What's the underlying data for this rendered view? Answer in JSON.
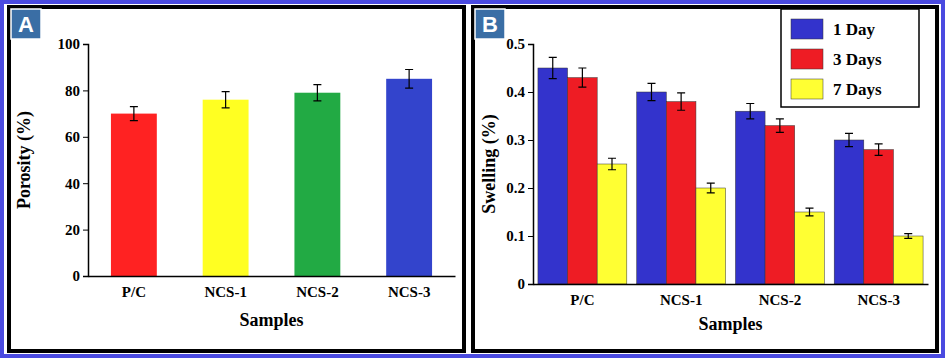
{
  "chart_data": [
    {
      "type": "bar",
      "annotations": [
        "A"
      ],
      "x_label": "Samples",
      "y_label": "Porosity (%)",
      "categories": [
        "P/C",
        "NCS-1",
        "NCS-2",
        "NCS-3"
      ],
      "values": [
        70,
        76,
        79,
        85
      ],
      "errors": [
        3,
        3.5,
        3.5,
        4
      ],
      "colors": [
        "#ff2222",
        "#ffff22",
        "#22aa44",
        "#3344cc"
      ],
      "ylim": [
        0,
        100
      ],
      "yticks": [
        0,
        20,
        40,
        60,
        80,
        100
      ]
    },
    {
      "type": "bar",
      "annotations": [
        "B"
      ],
      "x_label": "Samples",
      "y_label": "Swelling (%)",
      "categories": [
        "P/C",
        "NCS-1",
        "NCS-2",
        "NCS-3"
      ],
      "series": [
        {
          "name": "1 Day",
          "color": "#3333cc",
          "values": [
            0.45,
            0.4,
            0.36,
            0.3
          ],
          "errors": [
            0.022,
            0.018,
            0.016,
            0.014
          ]
        },
        {
          "name": "3 Days",
          "color": "#ee1c24",
          "values": [
            0.43,
            0.38,
            0.33,
            0.28
          ],
          "errors": [
            0.02,
            0.018,
            0.014,
            0.012
          ]
        },
        {
          "name": "7 Days",
          "color": "#ffff33",
          "values": [
            0.25,
            0.2,
            0.15,
            0.1
          ],
          "errors": [
            0.012,
            0.01,
            0.008,
            0.005
          ]
        }
      ],
      "legend": "upper right",
      "ylim": [
        0,
        0.5
      ],
      "yticks": [
        0,
        0.1,
        0.2,
        0.3,
        0.4,
        0.5
      ]
    }
  ]
}
